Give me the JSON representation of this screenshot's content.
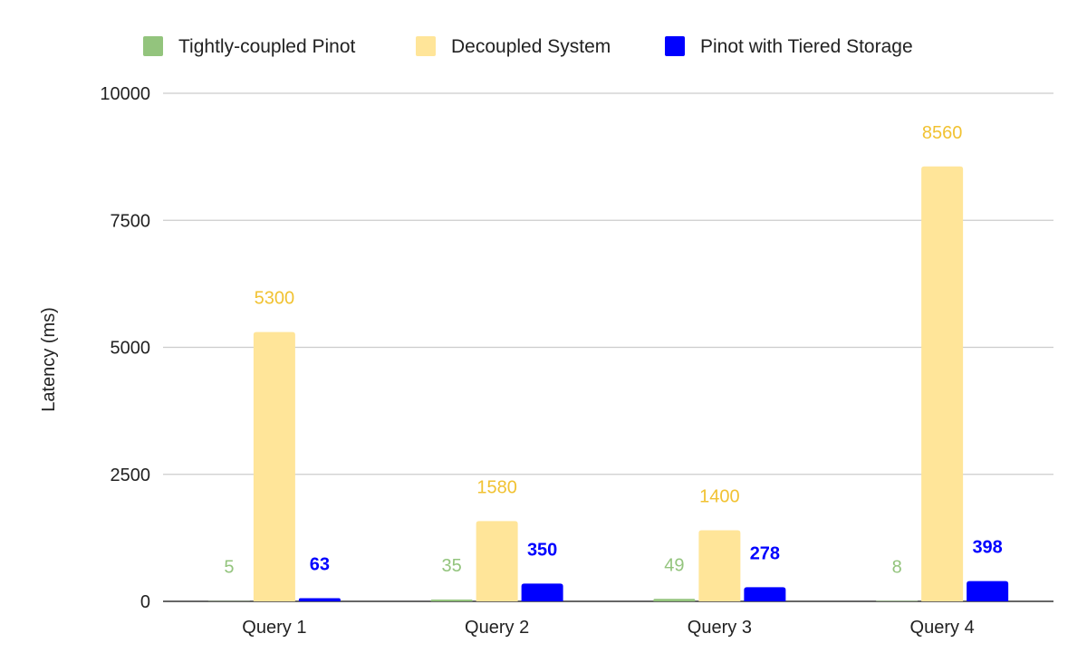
{
  "chart_data": {
    "type": "bar",
    "title": "",
    "xlabel": "",
    "ylabel": "Latency (ms)",
    "ylim": [
      0,
      10000
    ],
    "yticks": [
      0,
      2500,
      5000,
      7500,
      10000
    ],
    "grid": true,
    "legend_position": "top",
    "categories": [
      "Query 1",
      "Query 2",
      "Query 3",
      "Query 4"
    ],
    "series": [
      {
        "name": "Tightly-coupled Pinot",
        "color": "#93c47d",
        "label_color": "#93c47d",
        "label_bold": false,
        "values": [
          5,
          35,
          49,
          8
        ]
      },
      {
        "name": "Decoupled System",
        "color": "#ffe599",
        "label_color": "#f1c232",
        "label_bold": false,
        "values": [
          5300,
          1580,
          1400,
          8560
        ]
      },
      {
        "name": "Pinot with Tiered Storage",
        "color": "#0000ff",
        "label_color": "#0000ff",
        "label_bold": true,
        "values": [
          63,
          350,
          278,
          398
        ]
      }
    ]
  }
}
